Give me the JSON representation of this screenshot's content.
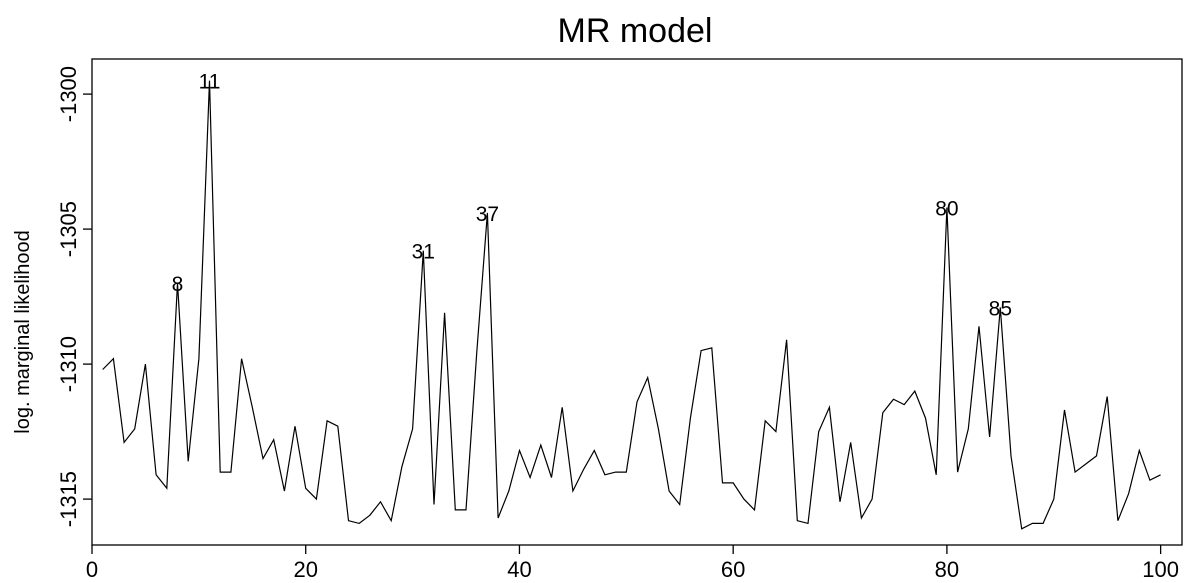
{
  "chart_data": {
    "type": "line",
    "title": "MR model",
    "xlabel": "",
    "ylabel": "log. marginal likelihood",
    "xlim": [
      0,
      102
    ],
    "ylim": [
      -1316.7,
      -1298.7
    ],
    "x_ticks": [
      0,
      20,
      40,
      60,
      80,
      100
    ],
    "y_ticks": [
      -1300,
      -1305,
      -1310,
      -1315
    ],
    "grid": false,
    "series": [
      {
        "x": [
          1,
          2,
          3,
          4,
          5,
          6,
          7,
          8,
          9,
          10,
          11,
          12,
          13,
          14,
          15,
          16,
          17,
          18,
          19,
          20,
          21,
          22,
          23,
          24,
          25,
          26,
          27,
          28,
          29,
          30,
          31,
          32,
          33,
          34,
          35,
          36,
          37,
          38,
          39,
          40,
          41,
          42,
          43,
          44,
          45,
          46,
          47,
          48,
          49,
          50,
          51,
          52,
          53,
          54,
          55,
          56,
          57,
          58,
          59,
          60,
          61,
          62,
          63,
          64,
          65,
          66,
          67,
          68,
          69,
          70,
          71,
          72,
          73,
          74,
          75,
          76,
          77,
          78,
          79,
          80,
          81,
          82,
          83,
          84,
          85,
          86,
          87,
          88,
          89,
          90,
          91,
          92,
          93,
          94,
          95,
          96,
          97,
          98,
          99,
          100
        ],
        "values": [
          -1310.2,
          -1309.8,
          -1312.9,
          -1312.4,
          -1310.0,
          -1314.1,
          -1314.6,
          -1307.0,
          -1313.6,
          -1309.8,
          -1299.5,
          -1314.0,
          -1314.0,
          -1309.8,
          -1311.6,
          -1313.5,
          -1312.8,
          -1314.7,
          -1312.3,
          -1314.6,
          -1315.0,
          -1312.1,
          -1312.3,
          -1315.8,
          -1315.9,
          -1315.6,
          -1315.1,
          -1315.8,
          -1313.8,
          -1312.4,
          -1305.8,
          -1315.2,
          -1308.1,
          -1315.4,
          -1315.4,
          -1309.6,
          -1304.4,
          -1315.7,
          -1314.7,
          -1313.2,
          -1314.2,
          -1313.0,
          -1314.2,
          -1311.6,
          -1314.7,
          -1313.9,
          -1313.2,
          -1314.1,
          -1314.0,
          -1314.0,
          -1311.4,
          -1310.5,
          -1312.4,
          -1314.7,
          -1315.2,
          -1312.0,
          -1309.5,
          -1309.4,
          -1314.4,
          -1314.4,
          -1315.0,
          -1315.4,
          -1312.1,
          -1312.5,
          -1309.1,
          -1315.8,
          -1315.9,
          -1312.5,
          -1311.6,
          -1315.1,
          -1312.9,
          -1315.7,
          -1315.0,
          -1311.8,
          -1311.3,
          -1311.5,
          -1311.0,
          -1312.0,
          -1314.1,
          -1304.2,
          -1314.0,
          -1312.4,
          -1308.6,
          -1312.7,
          -1307.9,
          -1313.4,
          -1316.1,
          -1315.9,
          -1315.9,
          -1315.0,
          -1311.7,
          -1314.0,
          -1313.7,
          -1313.4,
          -1311.2,
          -1315.8,
          -1314.8,
          -1313.2,
          -1314.3,
          -1314.1
        ]
      }
    ],
    "annotations": [
      {
        "text": "8",
        "x": 8,
        "y": -1307.0
      },
      {
        "text": "11",
        "x": 11,
        "y": -1299.5
      },
      {
        "text": "31",
        "x": 31,
        "y": -1305.8
      },
      {
        "text": "37",
        "x": 37,
        "y": -1304.4
      },
      {
        "text": "80",
        "x": 80,
        "y": -1304.2
      },
      {
        "text": "85",
        "x": 85,
        "y": -1307.9
      }
    ]
  }
}
